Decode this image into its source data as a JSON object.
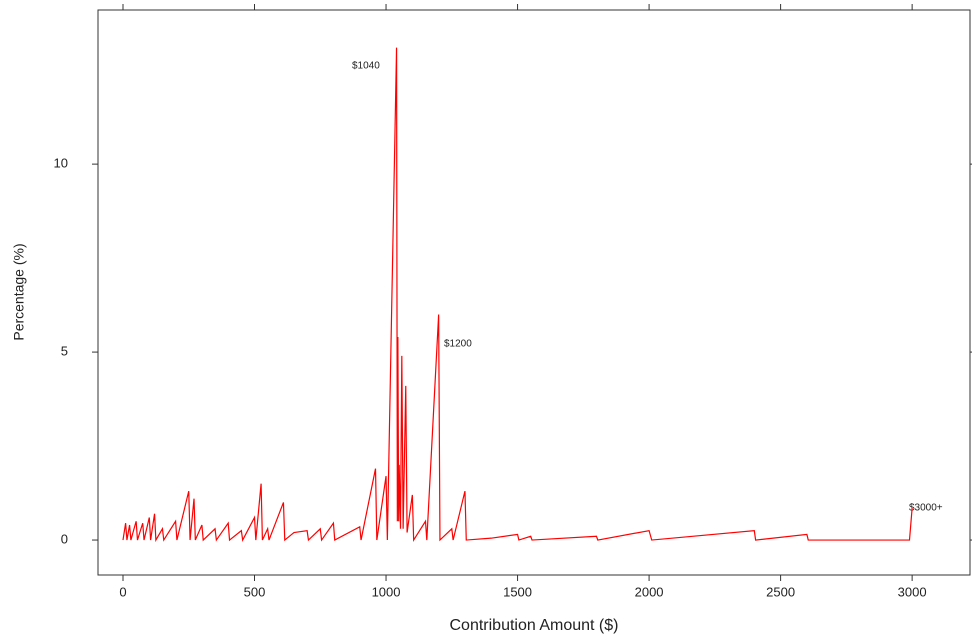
{
  "chart_data": {
    "type": "line",
    "x_label": "Contribution Amount ($)",
    "y_label": "Percentage (%)",
    "annotations": [
      "$1040",
      "$1200",
      "$3000+"
    ],
    "color": "#ff0000",
    "x": [
      0,
      10,
      15,
      25,
      30,
      50,
      55,
      75,
      80,
      100,
      105,
      120,
      125,
      150,
      155,
      200,
      205,
      250,
      255,
      270,
      275,
      300,
      305,
      350,
      355,
      400,
      405,
      450,
      455,
      500,
      505,
      525,
      530,
      550,
      555,
      610,
      615,
      650,
      700,
      705,
      750,
      755,
      800,
      805,
      900,
      905,
      960,
      965,
      1000,
      1005,
      1040,
      1043,
      1045,
      1048,
      1050,
      1055,
      1060,
      1065,
      1075,
      1080,
      1100,
      1105,
      1150,
      1155,
      1200,
      1205,
      1250,
      1255,
      1300,
      1305,
      1400,
      1500,
      1505,
      1550,
      1555,
      1800,
      1805,
      2000,
      2010,
      2400,
      2405,
      2600,
      2605,
      2990,
      3000
    ],
    "values": [
      0,
      0.45,
      0,
      0.4,
      0,
      0.5,
      0,
      0.45,
      0,
      0.6,
      0,
      0.7,
      0,
      0.3,
      0,
      0.5,
      0,
      1.3,
      0,
      1.1,
      0,
      0.4,
      0,
      0.3,
      0,
      0.45,
      0,
      0.25,
      0,
      0.6,
      0,
      1.5,
      0,
      0.3,
      0,
      1.0,
      0,
      0.2,
      0.25,
      0,
      0.3,
      0,
      0.45,
      0,
      0.35,
      0,
      1.9,
      0,
      1.7,
      0,
      13.1,
      0.5,
      5.4,
      0.5,
      2.0,
      0.3,
      4.9,
      0.3,
      4.1,
      0.2,
      1.2,
      0,
      0.5,
      0,
      6.0,
      0,
      0.3,
      0,
      1.3,
      0,
      0.05,
      0.15,
      0,
      0.1,
      0,
      0.1,
      0,
      0.25,
      0,
      0.25,
      0,
      0.15,
      0,
      0,
      0.85
    ],
    "xlim": [
      -95,
      3220
    ],
    "ylim": [
      -0.93,
      14.1
    ],
    "xticks": [
      0,
      500,
      1000,
      1500,
      2000,
      2500,
      3000
    ],
    "yticks": [
      0,
      5,
      10
    ]
  }
}
